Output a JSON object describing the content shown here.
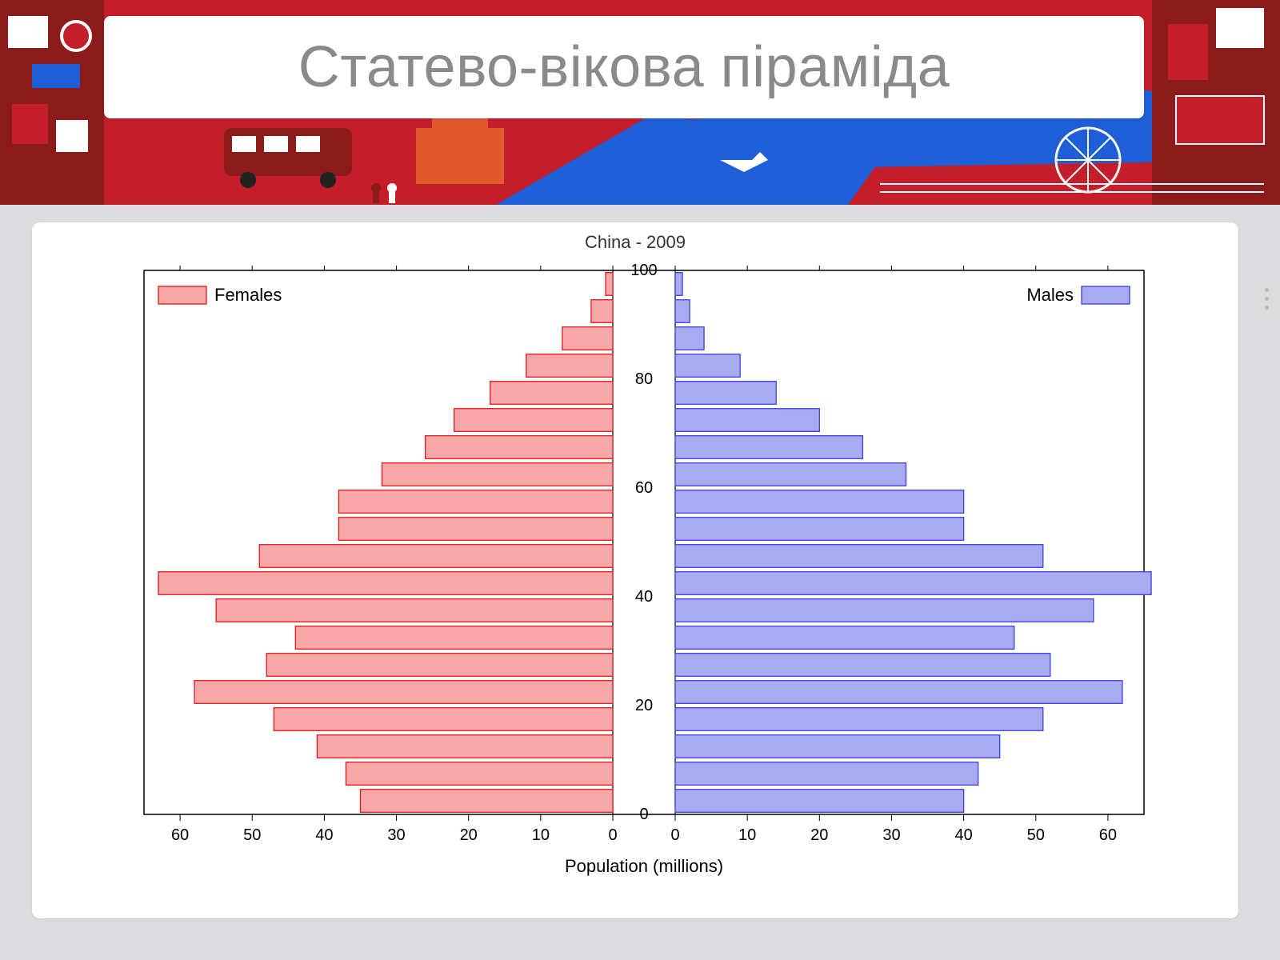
{
  "page_title": "Статево-вікова піраміда",
  "banner": {
    "bg_red": "#c41e2a",
    "bg_dark_red": "#8b1a1a",
    "bg_blue": "#1e5ed6",
    "bg_white": "#ffffff",
    "accent_orange": "#e05a2c"
  },
  "chart": {
    "title": "China - 2009",
    "title_fontsize": 22,
    "title_color": "#333333",
    "xlabel": "Population (millions)",
    "xlabel_fontsize": 22,
    "legend_left": "Females",
    "legend_right": "Males",
    "legend_fontsize": 22,
    "female_fill": "#f6a8a8",
    "female_stroke": "#e21818",
    "male_fill": "#a9abf0",
    "male_stroke": "#3a3fe0",
    "axis_color": "#000000",
    "background": "#ffffff",
    "xlim": 65,
    "xtick_step": 10,
    "xticks": [
      0,
      10,
      20,
      30,
      40,
      50,
      60
    ],
    "ylim": 100,
    "ytick_step": 20,
    "yticks": [
      0,
      20,
      40,
      60,
      80,
      100
    ],
    "age_band": 5,
    "age_starts": [
      0,
      5,
      10,
      15,
      20,
      25,
      30,
      35,
      40,
      45,
      50,
      55,
      60,
      65,
      70,
      75,
      80,
      85,
      90,
      95
    ],
    "female_values": [
      35,
      37,
      41,
      47,
      58,
      48,
      44,
      55,
      63,
      49,
      38,
      38,
      32,
      26,
      22,
      17,
      12,
      7,
      3,
      1
    ],
    "male_values": [
      40,
      42,
      45,
      51,
      62,
      52,
      47,
      58,
      66,
      51,
      40,
      40,
      32,
      26,
      20,
      14,
      9,
      4,
      2,
      1
    ]
  }
}
